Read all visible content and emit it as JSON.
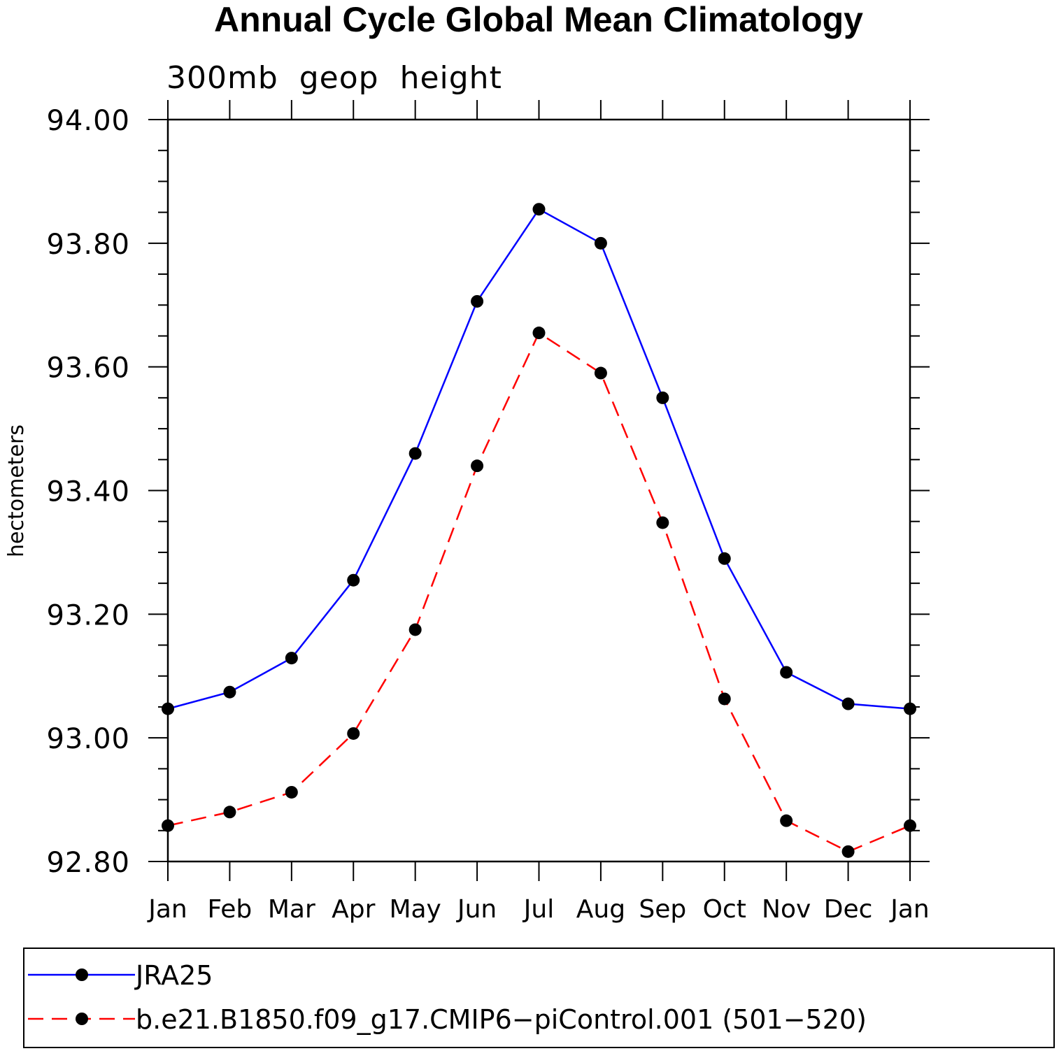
{
  "chart_data": {
    "type": "line",
    "title": "Annual Cycle Global Mean Climatology",
    "subtitle": "300mb  geop  height",
    "xlabel": "",
    "ylabel": "hectometers",
    "categories": [
      "Jan",
      "Feb",
      "Mar",
      "Apr",
      "May",
      "Jun",
      "Jul",
      "Aug",
      "Sep",
      "Oct",
      "Nov",
      "Dec",
      "Jan"
    ],
    "ylim": [
      92.8,
      94.0
    ],
    "yticks": [
      "92.80",
      "93.00",
      "93.20",
      "93.40",
      "93.60",
      "93.80",
      "94.00"
    ],
    "grid": false,
    "legend_position": "bottom",
    "series": [
      {
        "name": "JRA25",
        "color": "#0000ff",
        "style": "solid",
        "values": [
          93.047,
          93.074,
          93.129,
          93.255,
          93.46,
          93.706,
          93.855,
          93.8,
          93.55,
          93.29,
          93.106,
          93.055,
          93.047
        ]
      },
      {
        "name": "b.e21.B1850.f09_g17.CMIP6−piControl.001 (501−520)",
        "color": "#ff0000",
        "style": "dashed",
        "values": [
          92.858,
          92.88,
          92.912,
          93.007,
          93.175,
          93.44,
          93.655,
          93.59,
          93.348,
          93.063,
          92.866,
          92.816,
          92.858
        ]
      }
    ]
  }
}
